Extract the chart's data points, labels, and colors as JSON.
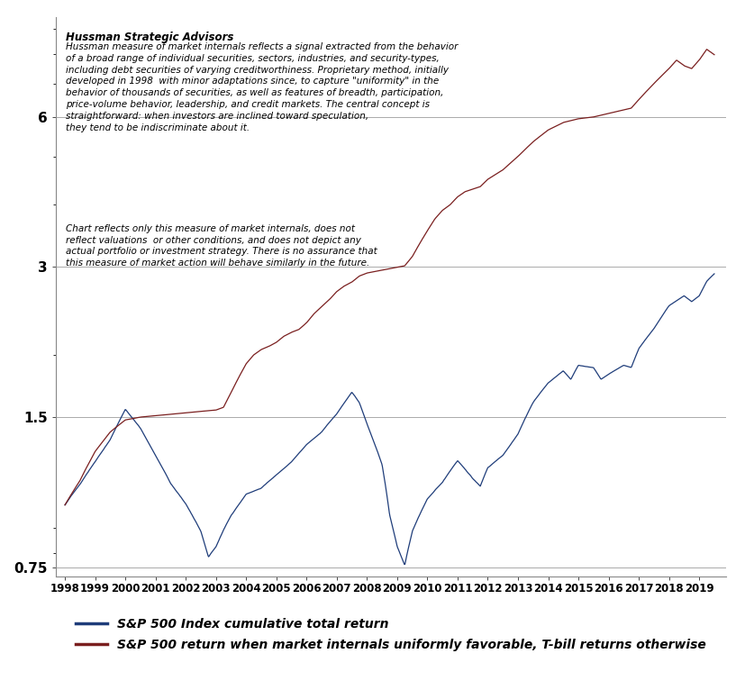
{
  "title_bold": "Hussman Strategic Advisors",
  "annotation_text1": "Hussman measure of market internals reflects a signal extracted from the behavior\nof a broad range of individual securities, sectors, industries, and security-types,\nincluding debt securities of varying creditworthiness. Proprietary method, initially\ndeveloped in 1998  with minor adaptations since, to capture \"uniformity\" in the\nbehavior of thousands of securities, as well as features of breadth, participation,\nprice-volume behavior, leadership, and credit markets. The central concept is\nstraightforward: when investors are inclined toward speculation,\nthey tend to be indiscriminate about it.",
  "annotation_text2": "Chart reflects only this measure of market internals, does not\nreflect valuations  or other conditions, and does not depict any\nactual portfolio or investment strategy. There is no assurance that\nthis measure of market action will behave similarly in the future.",
  "sp500_color": "#1f3d7a",
  "internals_color": "#7a1f1f",
  "legend_sp500": "S&P 500 Index cumulative total return",
  "legend_internals": "S&P 500 return when market internals uniformly favorable, T-bill returns otherwise",
  "yticks": [
    0.75,
    1.5,
    3.0,
    6.0
  ],
  "xlabel_years": [
    "1998",
    "1999",
    "2000",
    "2001",
    "2002",
    "2003",
    "2004",
    "2005",
    "2006",
    "2007",
    "2008",
    "2009",
    "2010",
    "2011",
    "2012",
    "2013",
    "2014",
    "2015",
    "2016",
    "2017",
    "2018",
    "2019"
  ],
  "background_color": "#ffffff",
  "grid_color": "#aaaaaa"
}
